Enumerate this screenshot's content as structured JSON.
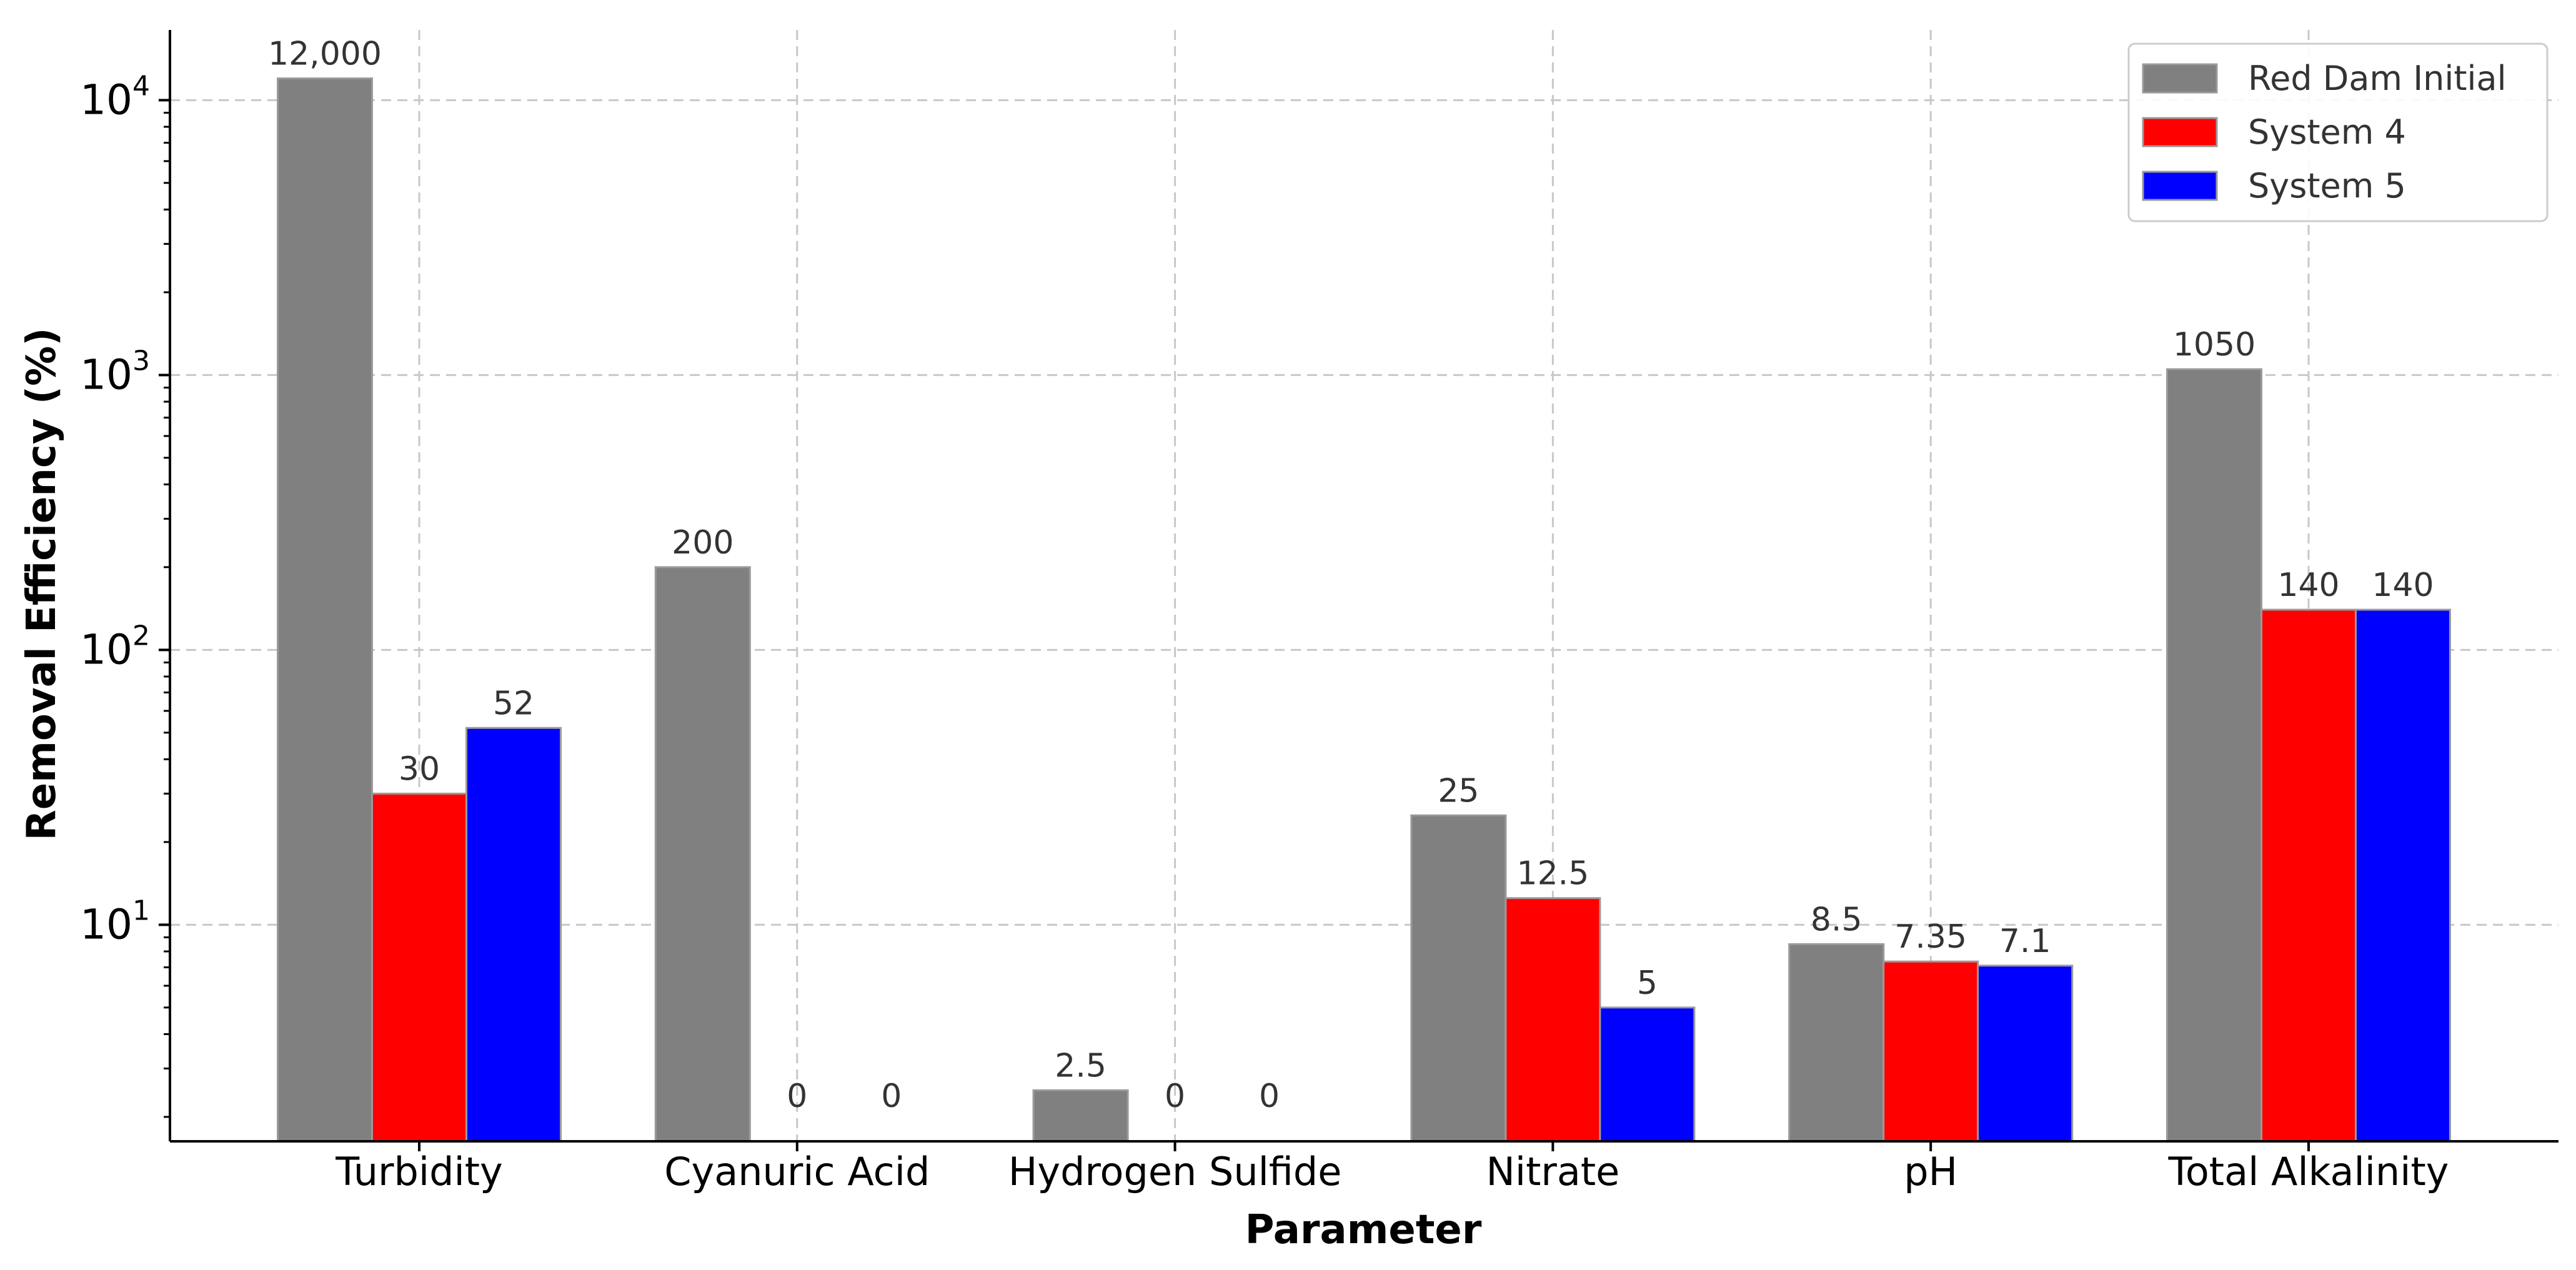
{
  "chart_data": {
    "type": "bar",
    "title": "",
    "xlabel": "Parameter",
    "ylabel": "Removal Efficiency (%)",
    "yscale": "log",
    "ylim": [
      1.63,
      18000
    ],
    "grid": true,
    "legend_position": "top-right",
    "categories": [
      "Turbidity",
      "Cyanuric Acid",
      "Hydrogen Sulfide",
      "Nitrate",
      "pH",
      "Total Alkalinity"
    ],
    "y_ticks": [
      {
        "value": 10,
        "base": "10",
        "exp": "1"
      },
      {
        "value": 100,
        "base": "10",
        "exp": "2"
      },
      {
        "value": 1000,
        "base": "10",
        "exp": "3"
      },
      {
        "value": 10000,
        "base": "10",
        "exp": "4"
      }
    ],
    "series": [
      {
        "name": "Red Dam Initial",
        "color": "#808080",
        "values": [
          12000,
          200,
          2.5,
          25,
          8.5,
          1050
        ],
        "labels": [
          "12,000",
          "200",
          "2.5",
          "25",
          "8.5",
          "1050"
        ]
      },
      {
        "name": "System 4",
        "color": "#ff0000",
        "values": [
          30,
          0,
          0,
          12.5,
          7.35,
          140
        ],
        "labels": [
          "30",
          "0",
          "0",
          "12.5",
          "7.35",
          "140"
        ]
      },
      {
        "name": "System 5",
        "color": "#0000ff",
        "values": [
          52,
          0,
          0,
          5,
          7.1,
          140
        ],
        "labels": [
          "52",
          "0",
          "0",
          "5",
          "7.1",
          "140"
        ]
      }
    ]
  }
}
